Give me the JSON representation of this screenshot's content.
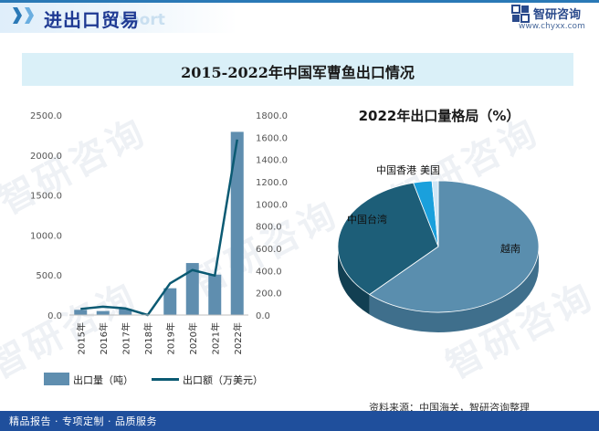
{
  "header": {
    "title": "进出口贸易",
    "title_en": "export",
    "brand_name": "智研咨询",
    "brand_url": "www.chyxx.com"
  },
  "chart_title": "2015-2022年中国军曹鱼出口情况",
  "watermark_text": "智研咨询",
  "chart_data": [
    {
      "type": "bar+line",
      "title": "2015-2022年中国军曹鱼出口情况",
      "categories": [
        "2015年",
        "2016年",
        "2017年",
        "2018年",
        "2019年",
        "2020年",
        "2021年",
        "2022年"
      ],
      "series": [
        {
          "name": "出口量（吨）",
          "type": "bar",
          "axis": "left",
          "values": [
            65,
            50,
            75,
            5,
            335,
            650,
            505,
            2290
          ]
        },
        {
          "name": "出口额（万美元）",
          "type": "line",
          "axis": "right",
          "values": [
            55,
            75,
            60,
            0,
            285,
            405,
            355,
            1580
          ]
        }
      ],
      "left_axis": {
        "min": 0,
        "max": 2500,
        "ticks": [
          "0.0",
          "500.0",
          "1000.0",
          "1500.0",
          "2000.0",
          "2500.0"
        ]
      },
      "right_axis": {
        "min": 0,
        "max": 1800,
        "ticks": [
          "0.0",
          "200.0",
          "400.0",
          "600.0",
          "800.0",
          "1000.0",
          "1200.0",
          "1400.0",
          "1600.0",
          "1800.0"
        ]
      },
      "colors": {
        "bar": "#5f8eaf",
        "line": "#0b5a73"
      }
    },
    {
      "type": "pie",
      "title": "2022年出口量格局（%）",
      "labels": [
        "越南",
        "中国台湾",
        "中国香港",
        "美国"
      ],
      "values": [
        62,
        34,
        3,
        1
      ],
      "colors": [
        "#5a8eae",
        "#1d5e78",
        "#1aa0dc",
        "#cfe6f5"
      ]
    }
  ],
  "legend": {
    "bar_label": "出口量（吨）",
    "line_label": "出口额（万美元）"
  },
  "source": "资料来源：中国海关，智研咨询整理",
  "footer": "精品报告 · 专项定制 · 品质服务"
}
